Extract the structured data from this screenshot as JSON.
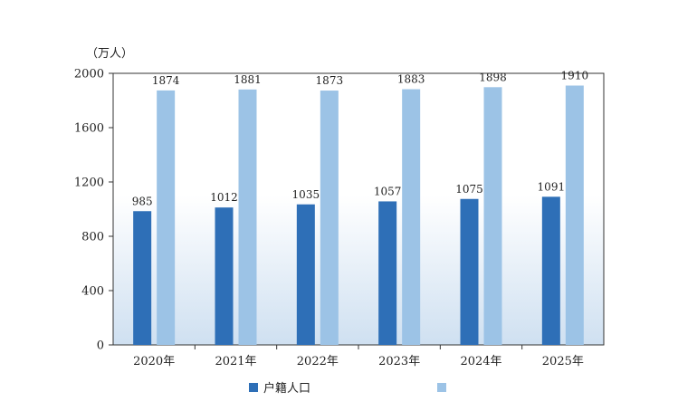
{
  "chart_data": {
    "type": "bar",
    "unit_label": "（万人）",
    "categories": [
      "2020年",
      "2021年",
      "2022年",
      "2023年",
      "2024年",
      "2025年"
    ],
    "series": [
      {
        "name": "户籍人口",
        "color": "#2e6fb7",
        "values": [
          985,
          1012,
          1035,
          1057,
          1075,
          1091
        ]
      },
      {
        "name": "",
        "color": "#9cc3e6",
        "values": [
          1874,
          1881,
          1873,
          1883,
          1898,
          1910
        ]
      }
    ],
    "yticks": [
      "0",
      "400",
      "800",
      "1200",
      "1600",
      "2000"
    ],
    "ylim": [
      0,
      2000
    ],
    "grid": false,
    "legend_position": "bottom"
  }
}
